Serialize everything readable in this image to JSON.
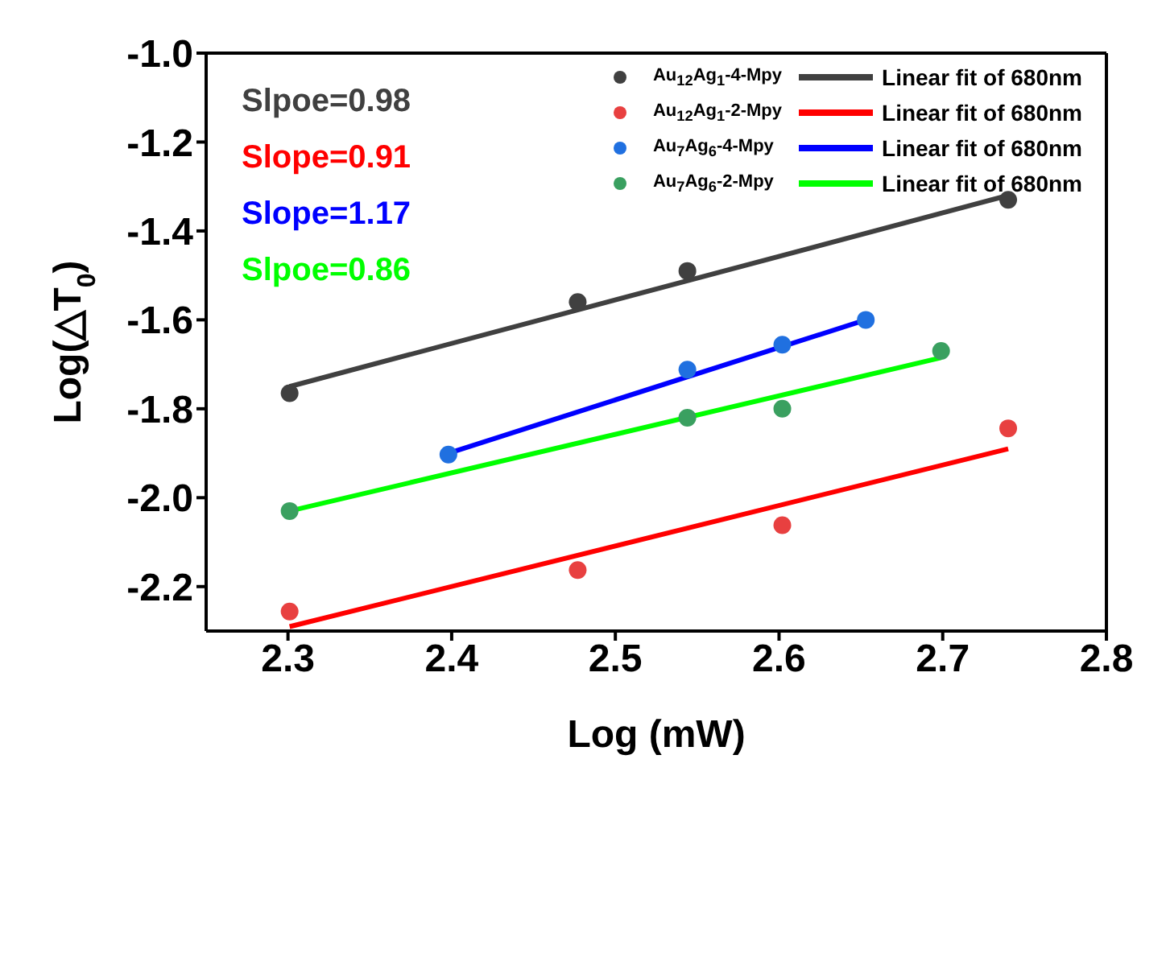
{
  "chart_data": {
    "type": "scatter",
    "xlabel": "Log (mW)",
    "ylabel": "Log(△T$_{0}$)",
    "xlim": [
      2.25,
      2.8
    ],
    "xticks": [
      2.3,
      2.4,
      2.5,
      2.6,
      2.7,
      2.8
    ],
    "ylim": [
      -2.3,
      -1.0
    ],
    "yticks": [
      {
        "value": -1.0,
        "label": "-1.0"
      },
      {
        "value": -1.2,
        "label": "-1.2"
      },
      {
        "value": -1.4,
        "label": "-1.4"
      },
      {
        "value": -1.6,
        "label": "-1.6"
      },
      {
        "value": -1.8,
        "label": "-1.8"
      },
      {
        "value": -2.0,
        "label": "-2.0"
      },
      {
        "value": -2.2,
        "label": "-2.2"
      }
    ],
    "legend": "top right",
    "marker": "circle",
    "line_style": "solid",
    "annotations": [
      "Slpoe=0.98",
      "Slope=0.91",
      "Slope=1.17",
      "Slpoe=0.86"
    ],
    "series": [
      {
        "name": "Au$_{12}$Ag$_{1}$-4-Mpy",
        "color": "#404040",
        "x": [
          2.301,
          2.477,
          2.544,
          2.74
        ],
        "values": [
          -1.765,
          -1.56,
          -1.49,
          -1.33
        ]
      },
      {
        "name": "Linear fit of 680nm",
        "type": "line",
        "marker": "none",
        "color": "#404040",
        "x": [
          2.301,
          2.74
        ],
        "values": [
          -1.75,
          -1.32
        ]
      },
      {
        "name": "Au$_{12}$Ag$_{1}$-2-Mpy",
        "color": "#e84040",
        "x": [
          2.301,
          2.477,
          2.602,
          2.74
        ],
        "values": [
          -2.256,
          -2.163,
          -2.062,
          -1.844
        ]
      },
      {
        "name": "Linear fit of 680nm",
        "type": "line",
        "marker": "none",
        "color": "#ff0000",
        "x": [
          2.301,
          2.74
        ],
        "values": [
          -2.29,
          -1.89
        ]
      },
      {
        "name": "Au$_{7}$Ag$_{6}$-4-Mpy",
        "color": "#2070e0",
        "x": [
          2.398,
          2.544,
          2.602,
          2.653
        ],
        "values": [
          -1.903,
          -1.712,
          -1.656,
          -1.6
        ]
      },
      {
        "name": "Linear fit of 680nm",
        "type": "line",
        "marker": "none",
        "color": "#0000ff",
        "x": [
          2.398,
          2.653
        ],
        "values": [
          -1.9,
          -1.6
        ]
      },
      {
        "name": "Au$_{7}$Ag$_{6}$-2-Mpy",
        "color": "#3aa060",
        "x": [
          2.301,
          2.544,
          2.602,
          2.699
        ],
        "values": [
          -2.03,
          -1.82,
          -1.8,
          -1.67
        ]
      },
      {
        "name": "Linear fit of 680nm",
        "type": "line",
        "marker": "none",
        "color": "#00ff00",
        "x": [
          2.301,
          2.699
        ],
        "values": [
          -2.03,
          -1.685
        ]
      }
    ]
  }
}
